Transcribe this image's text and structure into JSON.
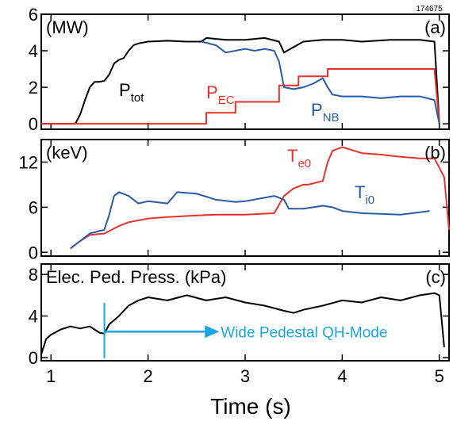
{
  "shot_number": "174675",
  "xlabel": "Time (s)",
  "x_ticks": [
    "1",
    "2",
    "3",
    "4",
    "5"
  ],
  "colors": {
    "black": "#000000",
    "red": "#e8332c",
    "blue": "#2a5aa8",
    "cyan": "#1aa6e0"
  },
  "chart_data": [
    {
      "type": "line",
      "panel": "(a)",
      "units": "(MW)",
      "xlim": [
        0.9,
        5.1
      ],
      "ylim": [
        -0.3,
        6
      ],
      "y_ticks": [
        0,
        2,
        4,
        6
      ],
      "series": [
        {
          "name": "P_tot",
          "label_main": "P",
          "label_sub": "tot",
          "color": "#000000",
          "x": [
            0.9,
            1.25,
            1.3,
            1.35,
            1.4,
            1.45,
            1.5,
            1.55,
            1.6,
            1.65,
            1.7,
            1.75,
            1.8,
            1.85,
            1.9,
            2.0,
            2.2,
            2.4,
            2.55,
            2.6,
            2.8,
            3.0,
            3.2,
            3.35,
            3.4,
            3.6,
            3.8,
            4.0,
            4.2,
            4.5,
            4.8,
            4.95,
            5.0
          ],
          "y": [
            0,
            0,
            0.5,
            1.3,
            2.0,
            2.3,
            2.3,
            2.35,
            2.7,
            3.3,
            3.5,
            3.6,
            4.0,
            4.3,
            4.4,
            4.5,
            4.55,
            4.5,
            4.5,
            4.7,
            4.6,
            4.6,
            4.7,
            4.5,
            3.9,
            4.5,
            4.6,
            4.6,
            4.5,
            4.6,
            4.6,
            4.5,
            0
          ]
        },
        {
          "name": "P_EC",
          "label_main": "P",
          "label_sub": "EC",
          "color": "#e8332c",
          "x": [
            0.9,
            2.6,
            2.6,
            2.9,
            2.9,
            3.35,
            3.35,
            3.55,
            3.55,
            3.85,
            3.85,
            4.95,
            5.0
          ],
          "y": [
            0,
            0,
            0.6,
            0.6,
            1.2,
            1.2,
            2.1,
            2.1,
            2.6,
            2.6,
            3.0,
            3.0,
            0
          ]
        },
        {
          "name": "P_NB",
          "label_main": "P",
          "label_sub": "NB",
          "color": "#2a5aa8",
          "x": [
            2.55,
            2.7,
            2.8,
            2.9,
            3.0,
            3.1,
            3.2,
            3.3,
            3.35,
            3.4,
            3.5,
            3.6,
            3.7,
            3.8,
            3.85,
            3.9,
            4.0,
            4.2,
            4.4,
            4.6,
            4.8,
            4.95,
            5.0
          ],
          "y": [
            4.5,
            4.3,
            3.9,
            4.0,
            4.1,
            4.0,
            4.1,
            4.0,
            3.4,
            2.0,
            1.9,
            2.0,
            2.2,
            2.5,
            2.0,
            1.6,
            1.5,
            1.5,
            1.4,
            1.5,
            1.5,
            1.3,
            0
          ]
        }
      ]
    },
    {
      "type": "line",
      "panel": "(b)",
      "units": "(keV)",
      "xlim": [
        0.9,
        5.1
      ],
      "ylim": [
        -0.5,
        15
      ],
      "y_ticks": [
        0,
        6,
        12
      ],
      "series": [
        {
          "name": "T_e0",
          "label_main": "T",
          "label_sub": "e0",
          "color": "#e8332c",
          "x": [
            1.2,
            1.3,
            1.4,
            1.55,
            1.7,
            1.8,
            2.0,
            2.2,
            2.5,
            2.7,
            3.0,
            3.3,
            3.4,
            3.5,
            3.6,
            3.65,
            3.8,
            3.85,
            3.9,
            4.0,
            4.2,
            4.4,
            4.6,
            4.8,
            4.95,
            5.05,
            5.1
          ],
          "y": [
            0.5,
            1.5,
            2.3,
            2.5,
            3.5,
            4.0,
            4.5,
            4.7,
            4.9,
            5.0,
            5.0,
            5.2,
            7.5,
            8.5,
            9.0,
            9.0,
            9.5,
            12.0,
            13.5,
            14.0,
            13.2,
            13.0,
            12.7,
            12.5,
            12.5,
            10.0,
            3.0
          ]
        },
        {
          "name": "T_i0",
          "label_main": "T",
          "label_sub": "i0",
          "color": "#2a5aa8",
          "x": [
            1.2,
            1.3,
            1.4,
            1.55,
            1.6,
            1.65,
            1.7,
            1.8,
            1.9,
            2.0,
            2.2,
            2.3,
            2.5,
            2.7,
            2.9,
            3.0,
            3.3,
            3.4,
            3.45,
            3.6,
            3.8,
            3.9,
            4.0,
            4.2,
            4.6,
            4.9
          ],
          "y": [
            0.5,
            1.5,
            2.5,
            3.0,
            5.0,
            7.5,
            8.0,
            7.5,
            6.5,
            6.8,
            6.5,
            8.0,
            7.8,
            7.0,
            6.7,
            6.8,
            7.5,
            7.0,
            5.8,
            5.8,
            6.2,
            6.0,
            5.5,
            5.2,
            5.0,
            5.5
          ]
        }
      ]
    },
    {
      "type": "line",
      "panel": "(c)",
      "units": "Elec. Ped. Press. (kPa)",
      "xlim": [
        0.9,
        5.1
      ],
      "ylim": [
        -0.3,
        9
      ],
      "y_ticks": [
        0,
        4,
        8
      ],
      "series": [
        {
          "name": "Elec. Ped. Press.",
          "color": "#000000",
          "x": [
            0.9,
            0.95,
            1.0,
            1.1,
            1.2,
            1.3,
            1.4,
            1.5,
            1.55,
            1.6,
            1.7,
            1.8,
            1.9,
            2.0,
            2.2,
            2.4,
            2.6,
            2.8,
            3.0,
            3.2,
            3.4,
            3.5,
            3.6,
            3.8,
            4.0,
            4.2,
            4.4,
            4.6,
            4.8,
            4.95,
            5.0,
            5.05
          ],
          "y": [
            0.3,
            1.8,
            2.2,
            2.7,
            3.0,
            2.8,
            3.0,
            2.4,
            2.3,
            3.2,
            4.0,
            5.0,
            5.5,
            5.8,
            5.5,
            6.0,
            5.5,
            5.8,
            5.3,
            5.0,
            4.5,
            4.3,
            4.6,
            5.0,
            5.5,
            5.3,
            5.8,
            5.5,
            6.0,
            6.2,
            6.0,
            1.0
          ]
        }
      ],
      "annotation": {
        "text": "Wide Pedestal QH-Mode",
        "color": "#1aa6e0",
        "x_start": 1.55,
        "x_end": 2.7,
        "y": 2.5
      }
    }
  ]
}
